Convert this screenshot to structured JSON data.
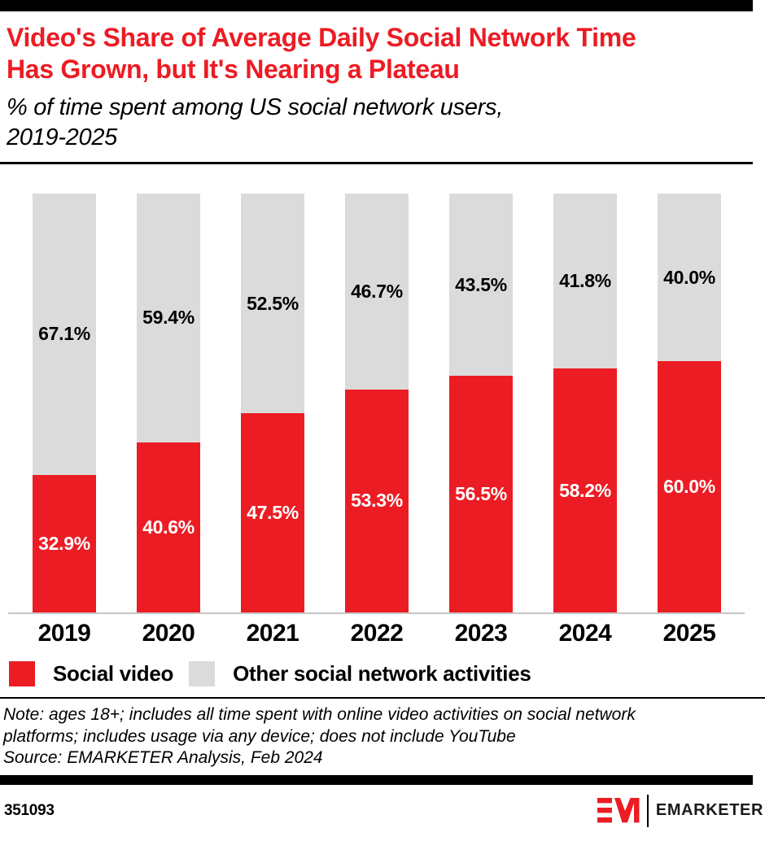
{
  "header": {
    "title_lines": [
      "Video's Share of Average Daily Social Network Time",
      "Has Grown, but It's Nearing a Plateau"
    ],
    "subtitle_lines": [
      "% of time spent among US social network users,",
      "2019-2025"
    ]
  },
  "chart_data": {
    "type": "bar",
    "stacked": true,
    "stacking": "percent",
    "title": "Video's Share of Average Daily Social Network Time Has Grown, but It's Nearing a Plateau",
    "subtitle": "% of time spent among US social network users, 2019-2025",
    "categories": [
      "2019",
      "2020",
      "2021",
      "2022",
      "2023",
      "2024",
      "2025"
    ],
    "series": [
      {
        "name": "Social video",
        "color": "#EC1C24",
        "label_color": "#FFFFFF",
        "values": [
          32.9,
          40.6,
          47.5,
          53.3,
          56.5,
          58.2,
          60.0
        ],
        "labels": [
          "32.9%",
          "40.6%",
          "47.5%",
          "53.3%",
          "56.5%",
          "58.2%",
          "60.0%"
        ]
      },
      {
        "name": "Other social network activities",
        "color": "#DBDBDB",
        "label_color": "#000000",
        "values": [
          67.1,
          59.4,
          52.5,
          46.7,
          43.5,
          41.8,
          40.0
        ],
        "labels": [
          "67.1%",
          "59.4%",
          "52.5%",
          "46.7%",
          "43.5%",
          "41.8%",
          "40.0%"
        ]
      }
    ],
    "ylim": [
      0,
      100
    ],
    "grid": false,
    "legend_position": "bottom"
  },
  "legend": {
    "items": [
      {
        "label": "Social video",
        "color": "#EC1C24"
      },
      {
        "label": "Other social network activities",
        "color": "#DBDBDB"
      }
    ]
  },
  "notes": {
    "note_lines": [
      "Note: ages 18+; includes all time spent with online video activities on social network",
      "platforms; includes usage via any device; does not include YouTube"
    ],
    "source": "Source: EMARKETER Analysis, Feb 2024"
  },
  "footer": {
    "chart_id": "351093",
    "brand": "EMARKETER"
  },
  "colors": {
    "accent_red": "#EC1C24",
    "bar_gray": "#DBDBDB",
    "axis_gray": "#C6C6C6",
    "text_black": "#000000"
  }
}
